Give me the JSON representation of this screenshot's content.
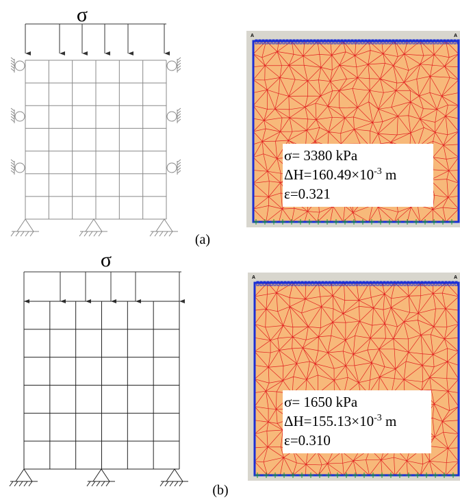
{
  "panels": [
    {
      "load_label": "σ",
      "mesh_corner_label": "A",
      "result": {
        "stress": "σ= 3380 kPa",
        "settlement": "ΔH=160.49×10",
        "exponent": "-3",
        "unit": " m",
        "strain": "ε=0.321"
      },
      "caption": "(a)"
    },
    {
      "load_label": "σ",
      "mesh_corner_label": "A",
      "result": {
        "stress": "σ= 1650 kPa",
        "settlement": "ΔH=155.13×10",
        "exponent": "-3",
        "unit": " m",
        "strain": "ε=0.310"
      },
      "caption": "(b)"
    }
  ]
}
